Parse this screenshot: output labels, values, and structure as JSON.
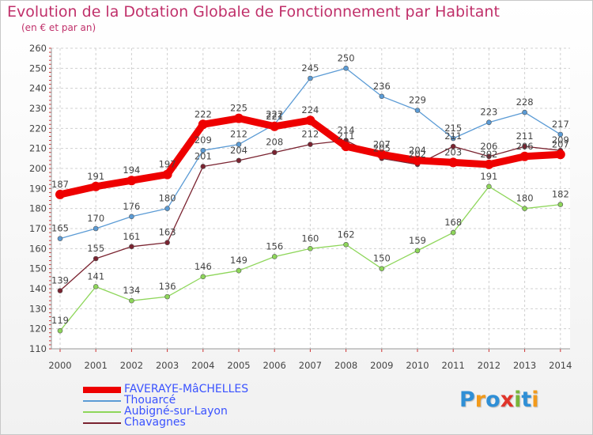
{
  "header": {
    "title": "Evolution de la Dotation Globale de Fonctionnement par Habitant",
    "subtitle": "(en € et par an)"
  },
  "logo": {
    "letters": [
      "P",
      "r",
      "o",
      "x",
      "i",
      "t",
      "i"
    ],
    "colors": [
      "#2f8fd6",
      "#f29a1b",
      "#2f8fd6",
      "#e0342a",
      "#79b53a",
      "#2f8fd6",
      "#f29a1b"
    ]
  },
  "chart_data": {
    "type": "line",
    "title": "Evolution de la Dotation Globale de Fonctionnement par Habitant",
    "subtitle": "(en € et par an)",
    "xlabel": "",
    "ylabel": "",
    "x": [
      "2000",
      "2001",
      "2002",
      "2003",
      "2004",
      "2005",
      "2006",
      "2007",
      "2008",
      "2009",
      "2010",
      "2011",
      "2012",
      "2013",
      "2014"
    ],
    "ylim": [
      110,
      260
    ],
    "yticks": [
      110,
      120,
      130,
      140,
      150,
      160,
      170,
      180,
      190,
      200,
      210,
      220,
      230,
      240,
      250,
      260
    ],
    "grid": true,
    "legend_position": "bottom-left",
    "series": [
      {
        "name": "Thouarcé",
        "color": "#5b9bd5",
        "values": [
          165,
          170,
          176,
          180,
          209,
          212,
          222,
          245,
          250,
          236,
          229,
          215,
          223,
          228,
          217
        ]
      },
      {
        "name": "Aubigné-sur-Layon",
        "color": "#8ed65a",
        "values": [
          119,
          141,
          134,
          136,
          146,
          149,
          156,
          160,
          162,
          150,
          159,
          168,
          191,
          180,
          182
        ]
      },
      {
        "name": "Chavagnes",
        "color": "#7a2330",
        "values": [
          139,
          155,
          161,
          163,
          201,
          204,
          208,
          212,
          214,
          205,
          202,
          211,
          206,
          211,
          209
        ]
      },
      {
        "name": "FAVERAYE-MâCHELLES",
        "color": "#ee0000",
        "highlight": true,
        "values": [
          187,
          191,
          194,
          197,
          222,
          225,
          221,
          224,
          211,
          207,
          204,
          203,
          202,
          206,
          207
        ]
      }
    ]
  }
}
